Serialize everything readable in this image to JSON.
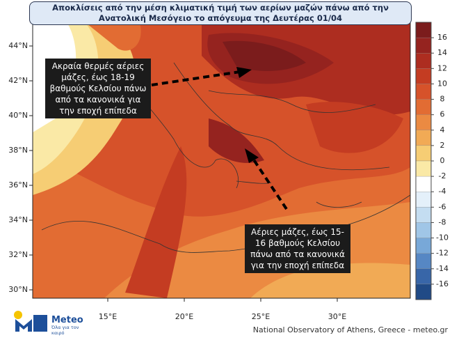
{
  "title": "Αποκλίσεις από την μέση κλιματική τιμή των αερίων μαζών πάνω από την Ανατολική Μεσόγειο το απόγευμα της Δευτέρας 01/04",
  "map": {
    "lat_labels": [
      "44°N",
      "42°N",
      "40°N",
      "38°N",
      "36°N",
      "34°N",
      "32°N",
      "30°N"
    ],
    "lon_labels": [
      "15°E",
      "20°E",
      "25°E",
      "30°E"
    ]
  },
  "annotations": [
    "Ακραία θερμές αέριες μάζες, έως 18-19 βαθμούς Κελσίου πάνω από τα κανονικά για την εποχή επίπεδα",
    "Αέριες μάζες, έως 15-16 βαθμούς Κελσίου πάνω από τα κανονικά για την εποχή επίπεδα"
  ],
  "colorbar": {
    "ticks": [
      16,
      14,
      12,
      10,
      8,
      6,
      4,
      2,
      0,
      -2,
      -4,
      -6,
      -8,
      -10,
      -12,
      -14,
      -16
    ],
    "colors": [
      "#7b1c1c",
      "#95231f",
      "#ad2d20",
      "#c43c22",
      "#d6522a",
      "#e26c33",
      "#eb8a42",
      "#f1aa55",
      "#f6cd74",
      "#fae9a6",
      "#ffffff",
      "#e4f0fa",
      "#c4ddf1",
      "#a0c6e7",
      "#78a8d8",
      "#5687c4",
      "#3866a8",
      "#204a86"
    ]
  },
  "logo": {
    "name": "Meteo",
    "tagline": "Όλα για τον καιρό"
  },
  "credit": "National Observatory of Athens, Greece - meteo.gr"
}
